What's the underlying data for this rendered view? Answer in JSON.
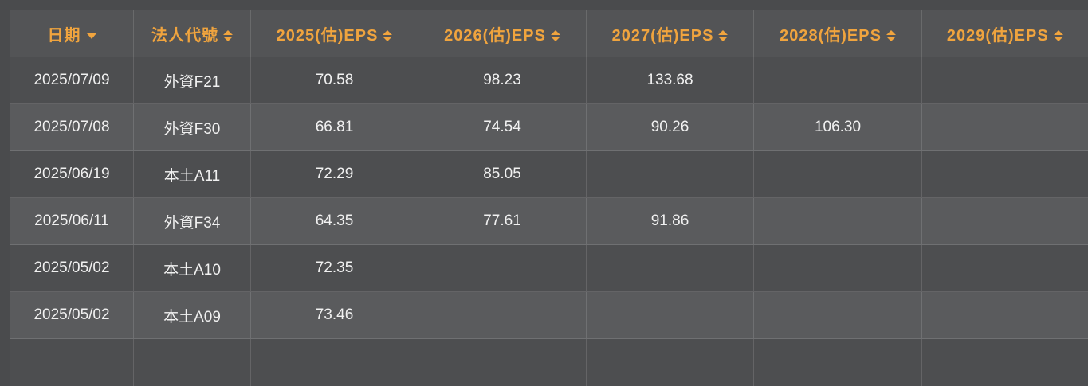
{
  "theme": {
    "accent_orange": "#F0A43E",
    "page_bg": "#4A4B4D",
    "header_bg": "#535456",
    "row_odd_bg": "#4D4E50",
    "row_even_bg": "#5A5B5D",
    "text_color": "#F1F1F1"
  },
  "table": {
    "columns": [
      {
        "key": "date",
        "label": "日期",
        "sort_state": "descending"
      },
      {
        "key": "broker",
        "label": "法人代號",
        "sort_state": "sortable"
      },
      {
        "key": "eps2025",
        "label": "2025(估)EPS",
        "sort_state": "sortable"
      },
      {
        "key": "eps2026",
        "label": "2026(估)EPS",
        "sort_state": "sortable"
      },
      {
        "key": "eps2027",
        "label": "2027(估)EPS",
        "sort_state": "sortable"
      },
      {
        "key": "eps2028",
        "label": "2028(估)EPS",
        "sort_state": "sortable"
      },
      {
        "key": "eps2029",
        "label": "2029(估)EPS",
        "sort_state": "sortable"
      }
    ],
    "rows": [
      {
        "date": "2025/07/09",
        "broker": "外資F21",
        "eps2025": "70.58",
        "eps2026": "98.23",
        "eps2027": "133.68",
        "eps2028": "",
        "eps2029": ""
      },
      {
        "date": "2025/07/08",
        "broker": "外資F30",
        "eps2025": "66.81",
        "eps2026": "74.54",
        "eps2027": "90.26",
        "eps2028": "106.30",
        "eps2029": ""
      },
      {
        "date": "2025/06/19",
        "broker": "本土A11",
        "eps2025": "72.29",
        "eps2026": "85.05",
        "eps2027": "",
        "eps2028": "",
        "eps2029": ""
      },
      {
        "date": "2025/06/11",
        "broker": "外資F34",
        "eps2025": "64.35",
        "eps2026": "77.61",
        "eps2027": "91.86",
        "eps2028": "",
        "eps2029": ""
      },
      {
        "date": "2025/05/02",
        "broker": "本土A10",
        "eps2025": "72.35",
        "eps2026": "",
        "eps2027": "",
        "eps2028": "",
        "eps2029": ""
      },
      {
        "date": "2025/05/02",
        "broker": "本土A09",
        "eps2025": "73.46",
        "eps2026": "",
        "eps2027": "",
        "eps2028": "",
        "eps2029": ""
      }
    ]
  }
}
